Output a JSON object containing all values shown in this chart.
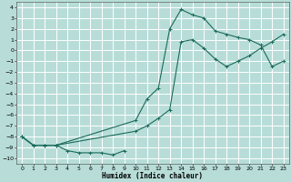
{
  "xlabel": "Humidex (Indice chaleur)",
  "bg_color": "#b8ddd8",
  "grid_color": "#ffffff",
  "line_color": "#1a6b5a",
  "xlim": [
    -0.5,
    23.5
  ],
  "ylim": [
    -10.5,
    4.5
  ],
  "yticks": [
    4,
    3,
    2,
    1,
    0,
    -1,
    -2,
    -3,
    -4,
    -5,
    -6,
    -7,
    -8,
    -9,
    -10
  ],
  "xticks": [
    0,
    1,
    2,
    3,
    4,
    5,
    6,
    7,
    8,
    9,
    10,
    11,
    12,
    13,
    14,
    15,
    16,
    17,
    18,
    19,
    20,
    21,
    22,
    23
  ],
  "curve1_x": [
    0,
    1,
    2,
    3,
    4,
    5,
    6,
    7,
    8,
    9
  ],
  "curve1_y": [
    -8.0,
    -8.8,
    -8.8,
    -8.8,
    -9.3,
    -9.5,
    -9.5,
    -9.5,
    -9.7,
    -9.3
  ],
  "curve2_x": [
    0,
    1,
    2,
    3,
    10,
    11,
    12,
    13,
    14,
    15,
    16,
    17,
    18,
    19,
    20,
    21,
    22,
    23
  ],
  "curve2_y": [
    -8.0,
    -8.8,
    -8.8,
    -8.8,
    -6.5,
    -4.5,
    -3.5,
    2.0,
    3.8,
    3.3,
    3.0,
    1.8,
    1.5,
    1.2,
    1.0,
    0.5,
    -1.5,
    -1.0
  ],
  "curve3_x": [
    0,
    1,
    2,
    3,
    10,
    11,
    12,
    13,
    14,
    15,
    16,
    17,
    18,
    19,
    20,
    21,
    22,
    23
  ],
  "curve3_y": [
    -8.0,
    -8.8,
    -8.8,
    -8.8,
    -7.5,
    -7.0,
    -6.3,
    -5.5,
    0.8,
    1.0,
    0.2,
    -0.8,
    -1.5,
    -1.0,
    -0.5,
    0.2,
    0.8,
    1.5
  ]
}
